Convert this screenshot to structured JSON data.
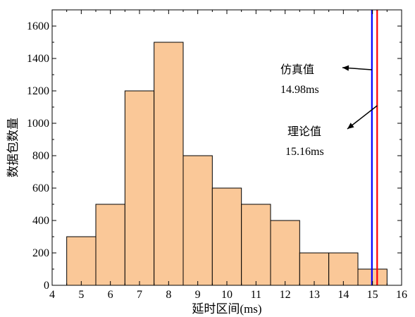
{
  "chart_data": {
    "type": "bar",
    "title": "",
    "xlabel": "延时区间(ms)",
    "ylabel": "数据包数量",
    "xlim": [
      4,
      16
    ],
    "ylim": [
      0,
      1700
    ],
    "xticks": [
      4,
      5,
      6,
      7,
      8,
      9,
      10,
      11,
      12,
      13,
      14,
      15,
      16
    ],
    "yticks": [
      0,
      200,
      400,
      600,
      800,
      1000,
      1200,
      1400,
      1600
    ],
    "bar_color": "#FAC898",
    "bins": [
      {
        "from": 4.5,
        "to": 5.5,
        "value": 300
      },
      {
        "from": 5.5,
        "to": 6.5,
        "value": 500
      },
      {
        "from": 6.5,
        "to": 7.5,
        "value": 1200
      },
      {
        "from": 7.5,
        "to": 8.5,
        "value": 1500
      },
      {
        "from": 8.5,
        "to": 9.5,
        "value": 800
      },
      {
        "from": 9.5,
        "to": 10.5,
        "value": 600
      },
      {
        "from": 10.5,
        "to": 11.5,
        "value": 500
      },
      {
        "from": 11.5,
        "to": 12.5,
        "value": 400
      },
      {
        "from": 12.5,
        "to": 13.5,
        "value": 200
      },
      {
        "from": 13.5,
        "to": 14.5,
        "value": 200
      },
      {
        "from": 14.5,
        "to": 15.5,
        "value": 100
      }
    ],
    "reference_lines": [
      {
        "x": 14.98,
        "color": "#0000ff",
        "label": "仿真值",
        "value_label": "14.98ms"
      },
      {
        "x": 15.16,
        "color": "#ff0000",
        "label": "理论值",
        "value_label": "15.16ms"
      }
    ],
    "grid": false,
    "legend": "none"
  }
}
